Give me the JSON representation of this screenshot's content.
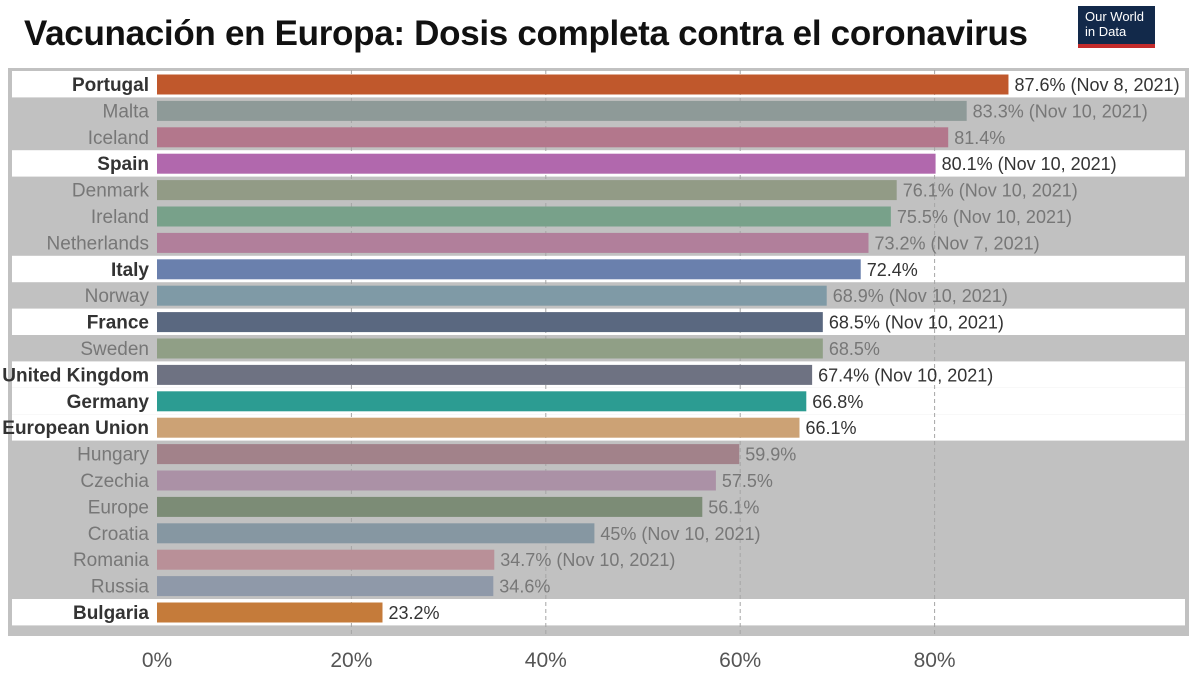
{
  "title": "Vacunación en Europa: Dosis completa contra el coronavirus",
  "logo": {
    "line1": "Our World",
    "line2": "in Data"
  },
  "colors": {
    "panel": "#c1c1c1",
    "highlight": "#ffffff",
    "grid": "#a6a6a6"
  },
  "chart_data": {
    "type": "bar",
    "orientation": "horizontal",
    "title": "Vacunación en Europa: Dosis completa contra el coronavirus",
    "xlabel": "",
    "ylabel": "",
    "xlim": [
      0,
      100
    ],
    "xticks": [
      0,
      20,
      40,
      60,
      80
    ],
    "xtick_labels": [
      "0%",
      "20%",
      "40%",
      "60%",
      "80%"
    ],
    "grid": true,
    "categories": [
      "Portugal",
      "Malta",
      "Iceland",
      "Spain",
      "Denmark",
      "Ireland",
      "Netherlands",
      "Italy",
      "Norway",
      "France",
      "Sweden",
      "United Kingdom",
      "Germany",
      "European Union",
      "Hungary",
      "Czechia",
      "Europe",
      "Croatia",
      "Romania",
      "Russia",
      "Bulgaria"
    ],
    "values": [
      87.6,
      83.3,
      81.4,
      80.1,
      76.1,
      75.5,
      73.2,
      72.4,
      68.9,
      68.5,
      68.5,
      67.4,
      66.8,
      66.1,
      59.9,
      57.5,
      56.1,
      45,
      34.7,
      34.6,
      23.2
    ],
    "value_labels": [
      "87.6% (Nov 8, 2021)",
      "83.3% (Nov 10, 2021)",
      "81.4%",
      "80.1% (Nov 10, 2021)",
      "76.1% (Nov 10, 2021)",
      "75.5% (Nov 10, 2021)",
      "73.2% (Nov 7, 2021)",
      "72.4%",
      "68.9% (Nov 10, 2021)",
      "68.5% (Nov 10, 2021)",
      "68.5%",
      "67.4% (Nov 10, 2021)",
      "66.8%",
      "66.1%",
      "59.9%",
      "57.5%",
      "56.1%",
      "45% (Nov 10, 2021)",
      "34.7% (Nov 10, 2021)",
      "34.6%",
      "23.2%"
    ],
    "highlighted": [
      true,
      false,
      false,
      true,
      false,
      false,
      false,
      true,
      false,
      true,
      false,
      true,
      true,
      true,
      false,
      false,
      false,
      false,
      false,
      false,
      true
    ],
    "bar_colors": [
      "#c0582c",
      "#8e9a98",
      "#b3778c",
      "#b168ad",
      "#929b86",
      "#78a18a",
      "#b17f9b",
      "#6a80ad",
      "#7f9aa6",
      "#5a6880",
      "#909f86",
      "#6e7282",
      "#2c9c92",
      "#cca275",
      "#a2828a",
      "#ab91a6",
      "#7c8c76",
      "#8697a2",
      "#b99098",
      "#8f99a9",
      "#c57b3a"
    ]
  }
}
